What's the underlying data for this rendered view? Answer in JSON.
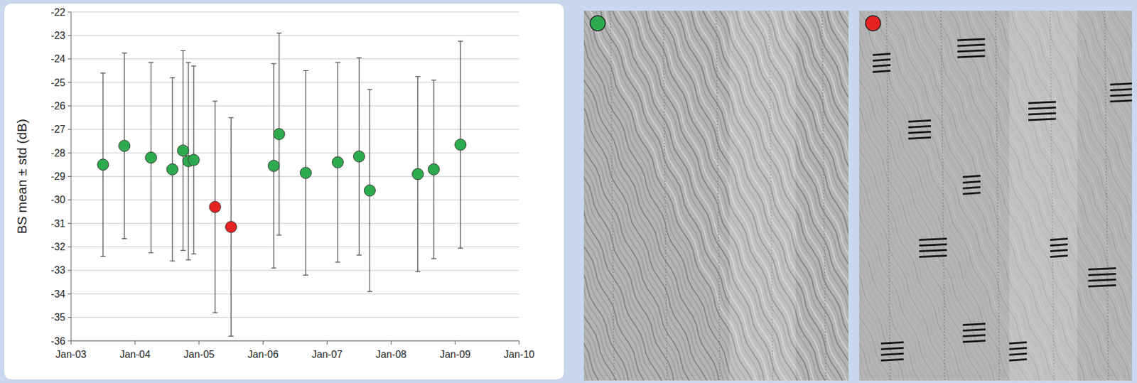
{
  "chart_data": {
    "type": "scatter",
    "y_label": "BS mean ± std (dB)",
    "x": [
      "2003-07",
      "2003-11",
      "2004-04",
      "2004-08",
      "2004-10",
      "2004-11",
      "2004-12",
      "2005-04",
      "2005-07",
      "2006-03",
      "2006-04",
      "2006-09",
      "2007-03",
      "2007-07",
      "2007-09",
      "2008-06",
      "2008-09",
      "2009-02"
    ],
    "values": [
      -28.5,
      -27.7,
      -28.2,
      -28.7,
      -27.9,
      -28.35,
      -28.3,
      -30.3,
      -31.15,
      -28.55,
      -27.2,
      -28.85,
      -28.4,
      -28.15,
      -29.6,
      -28.9,
      -28.7,
      -27.65
    ],
    "errors": [
      3.9,
      3.95,
      4.05,
      3.9,
      4.25,
      4.2,
      4.0,
      4.5,
      4.65,
      4.35,
      4.3,
      4.35,
      4.25,
      4.2,
      4.3,
      4.15,
      3.8,
      4.4
    ],
    "colors": [
      "#2eaa4e",
      "#2eaa4e",
      "#2eaa4e",
      "#2eaa4e",
      "#2eaa4e",
      "#2eaa4e",
      "#2eaa4e",
      "#e62222",
      "#e62222",
      "#2eaa4e",
      "#2eaa4e",
      "#2eaa4e",
      "#2eaa4e",
      "#2eaa4e",
      "#2eaa4e",
      "#2eaa4e",
      "#2eaa4e",
      "#2eaa4e"
    ],
    "marker": "circle",
    "xlim": [
      "2003-01",
      "2010-01"
    ],
    "xticks": [
      {
        "value": "2003-01",
        "label": "Jan-03"
      },
      {
        "value": "2004-01",
        "label": "Jan-04"
      },
      {
        "value": "2005-01",
        "label": "Jan-05"
      },
      {
        "value": "2006-01",
        "label": "Jan-06"
      },
      {
        "value": "2007-01",
        "label": "Jan-07"
      },
      {
        "value": "2008-01",
        "label": "Jan-08"
      },
      {
        "value": "2009-01",
        "label": "Jan-09"
      },
      {
        "value": "2010-01",
        "label": "Jan-10"
      }
    ],
    "ylim": [
      -36,
      -22
    ],
    "yticks": [
      -36,
      -35,
      -34,
      -33,
      -32,
      -31,
      -30,
      -29,
      -28,
      -27,
      -26,
      -25,
      -24,
      -23,
      -22
    ],
    "grid": true
  }
}
